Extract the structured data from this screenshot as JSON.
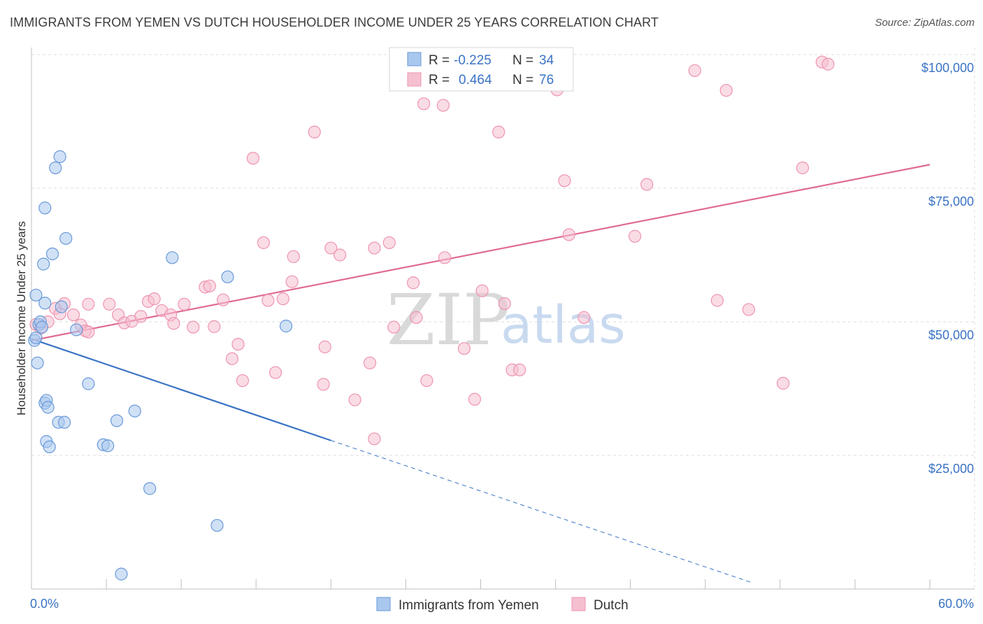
{
  "title": "IMMIGRANTS FROM YEMEN VS DUTCH HOUSEHOLDER INCOME UNDER 25 YEARS CORRELATION CHART",
  "source": "Source: ZipAtlas.com",
  "colors": {
    "blue": "#3a73c4",
    "blue_fill": "#a9c8ee",
    "blue_stroke": "#6a9ad8",
    "pink": "#e06b94",
    "pink_fill": "#f6bfd0",
    "pink_stroke": "#ee94b1",
    "grid": "#dcdcdc"
  },
  "chart_data": {
    "type": "scatter",
    "title": "IMMIGRANTS FROM YEMEN VS DUTCH HOUSEHOLDER INCOME UNDER 25 YEARS CORRELATION CHART",
    "xlabel": "",
    "ylabel": "Householder Income Under 25 years",
    "xlim": [
      0,
      60
    ],
    "ylim": [
      0,
      105000
    ],
    "x_tick_labels": [
      "0.0%",
      "60.0%"
    ],
    "y_ticks": [
      25000,
      50000,
      75000,
      100000
    ],
    "y_tick_labels": [
      "$25,000",
      "$50,000",
      "$75,000",
      "$100,000"
    ],
    "legend": [
      {
        "name": "Immigrants from Yemen",
        "r_label": "R =",
        "r": "-0.225",
        "n_label": "N =",
        "n": "34"
      },
      {
        "name": "Dutch",
        "r_label": "R =",
        "r": "0.464",
        "n_label": "N =",
        "n": "76"
      }
    ],
    "series": [
      {
        "name": "Immigrants from Yemen",
        "color": "blue",
        "points": [
          [
            0.2,
            46500
          ],
          [
            0.3,
            47000
          ],
          [
            0.3,
            55000
          ],
          [
            0.4,
            42300
          ],
          [
            0.5,
            49500
          ],
          [
            0.6,
            50000
          ],
          [
            0.7,
            49000
          ],
          [
            0.8,
            60800
          ],
          [
            0.9,
            34800
          ],
          [
            0.9,
            53500
          ],
          [
            0.9,
            71300
          ],
          [
            1.0,
            27600
          ],
          [
            1.0,
            35300
          ],
          [
            1.1,
            34000
          ],
          [
            1.2,
            26600
          ],
          [
            1.4,
            62700
          ],
          [
            1.6,
            78800
          ],
          [
            1.8,
            31200
          ],
          [
            1.9,
            80900
          ],
          [
            2.0,
            52800
          ],
          [
            2.2,
            31200
          ],
          [
            2.3,
            65600
          ],
          [
            3.0,
            48500
          ],
          [
            3.8,
            38400
          ],
          [
            4.8,
            27000
          ],
          [
            5.1,
            26800
          ],
          [
            5.7,
            31500
          ],
          [
            6.0,
            2800
          ],
          [
            6.9,
            33300
          ],
          [
            7.9,
            18800
          ],
          [
            9.4,
            62000
          ],
          [
            12.4,
            11900
          ],
          [
            13.1,
            58400
          ],
          [
            17.0,
            49200
          ]
        ],
        "trend": {
          "x0": 0,
          "y0": 46800,
          "x1": 20,
          "y1": 27800,
          "dash_x1": 48,
          "dash_y1": 1300
        }
      },
      {
        "name": "Dutch",
        "color": "pink",
        "points": [
          [
            0.3,
            49500
          ],
          [
            0.6,
            48800
          ],
          [
            1.1,
            50000
          ],
          [
            1.6,
            52500
          ],
          [
            1.9,
            51500
          ],
          [
            2.2,
            53400
          ],
          [
            2.8,
            51300
          ],
          [
            3.3,
            49400
          ],
          [
            3.6,
            48300
          ],
          [
            3.8,
            48100
          ],
          [
            3.8,
            53300
          ],
          [
            5.2,
            53300
          ],
          [
            5.8,
            51300
          ],
          [
            6.2,
            49800
          ],
          [
            6.7,
            50100
          ],
          [
            7.3,
            51000
          ],
          [
            7.8,
            53800
          ],
          [
            8.2,
            54300
          ],
          [
            8.7,
            52100
          ],
          [
            9.3,
            51300
          ],
          [
            9.5,
            49700
          ],
          [
            10.2,
            53300
          ],
          [
            10.8,
            49000
          ],
          [
            11.6,
            56500
          ],
          [
            11.9,
            56700
          ],
          [
            12.2,
            49100
          ],
          [
            12.8,
            54100
          ],
          [
            13.4,
            43100
          ],
          [
            13.8,
            45800
          ],
          [
            14.1,
            39000
          ],
          [
            14.8,
            80600
          ],
          [
            15.5,
            64800
          ],
          [
            15.8,
            54000
          ],
          [
            16.3,
            40500
          ],
          [
            16.8,
            54300
          ],
          [
            17.4,
            57500
          ],
          [
            17.5,
            62200
          ],
          [
            18.9,
            85500
          ],
          [
            19.5,
            38300
          ],
          [
            19.6,
            45300
          ],
          [
            20.0,
            63800
          ],
          [
            20.6,
            62500
          ],
          [
            21.6,
            35400
          ],
          [
            22.6,
            42300
          ],
          [
            22.9,
            28100
          ],
          [
            22.9,
            63800
          ],
          [
            23.9,
            64800
          ],
          [
            24.2,
            49000
          ],
          [
            25.5,
            57300
          ],
          [
            25.7,
            50800
          ],
          [
            26.2,
            90800
          ],
          [
            26.4,
            39000
          ],
          [
            27.5,
            90500
          ],
          [
            27.6,
            62000
          ],
          [
            28.1,
            99800
          ],
          [
            28.9,
            45000
          ],
          [
            29.6,
            35500
          ],
          [
            30.1,
            55800
          ],
          [
            31.2,
            85500
          ],
          [
            31.6,
            53400
          ],
          [
            32.1,
            41000
          ],
          [
            32.6,
            41000
          ],
          [
            35.1,
            93400
          ],
          [
            35.6,
            76400
          ],
          [
            35.9,
            66300
          ],
          [
            36.9,
            50800
          ],
          [
            40.3,
            66000
          ],
          [
            41.1,
            75700
          ],
          [
            44.3,
            97000
          ],
          [
            45.8,
            54000
          ],
          [
            46.4,
            93300
          ],
          [
            47.9,
            52300
          ],
          [
            50.2,
            38500
          ],
          [
            51.5,
            78800
          ],
          [
            52.8,
            98600
          ],
          [
            53.2,
            98200
          ]
        ],
        "trend": {
          "x0": 0,
          "y0": 46500,
          "x1": 60,
          "y1": 79400
        }
      }
    ]
  }
}
